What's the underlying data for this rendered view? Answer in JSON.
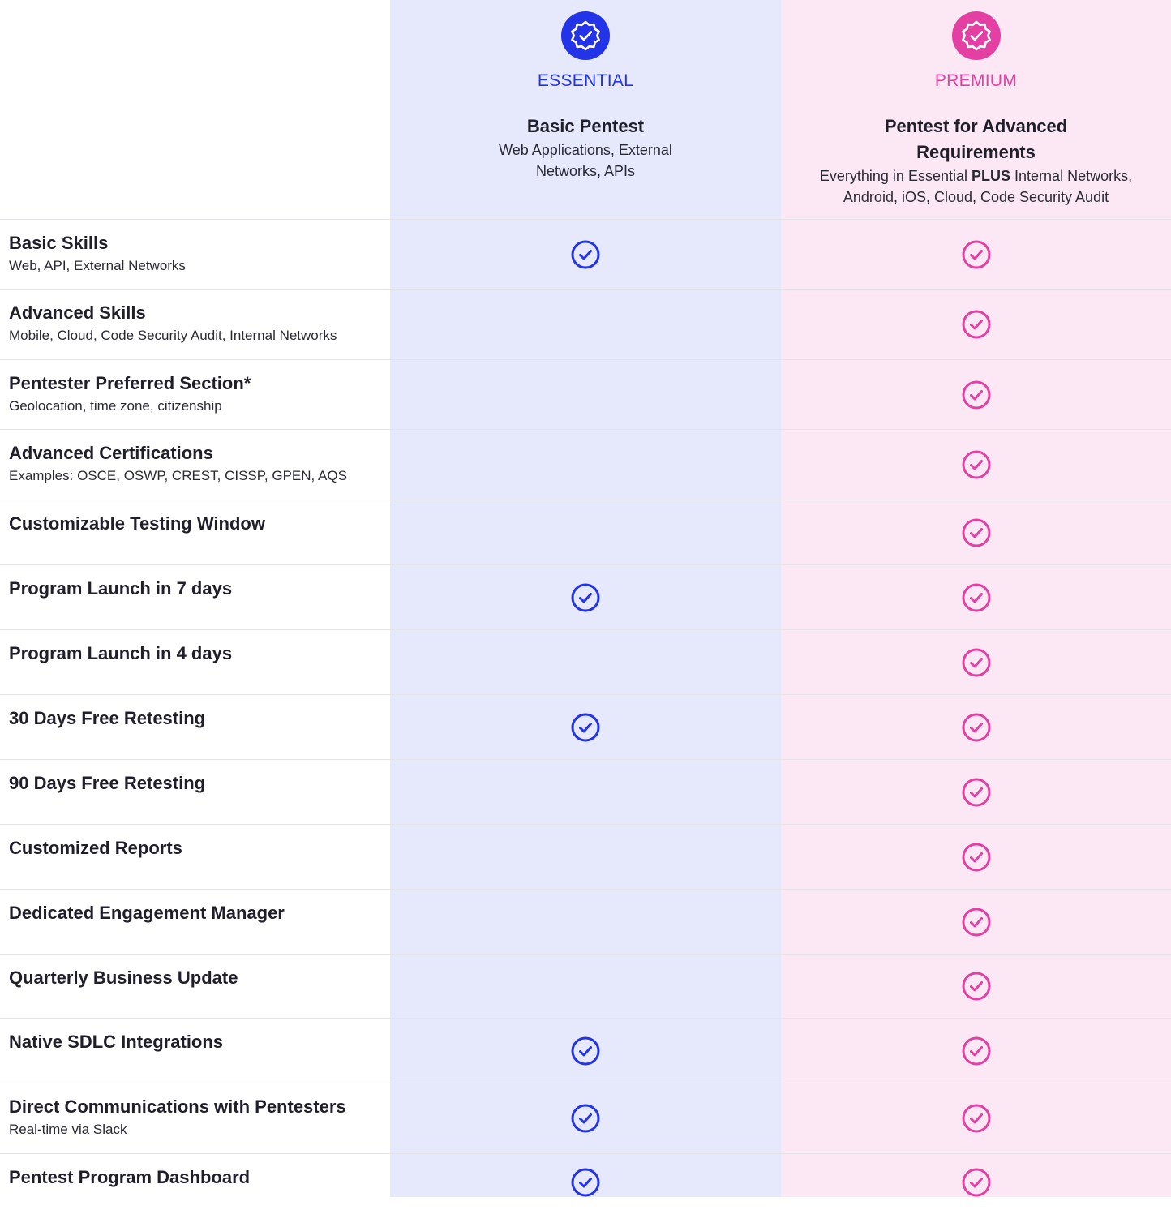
{
  "colors": {
    "essential_accent": "#2333e8",
    "premium_accent": "#e43fa2",
    "essential_bg": "#e6e8fc",
    "premium_bg": "#fce8f4"
  },
  "plans": {
    "essential": {
      "badge_icon": "verified-badge-icon",
      "tier": "ESSENTIAL",
      "title": "Basic Pentest",
      "description": "Web Applications, External Networks, APIs"
    },
    "premium": {
      "badge_icon": "verified-badge-icon",
      "tier": "PREMIUM",
      "title": "Pentest for Advanced Requirements",
      "description_prefix": "Everything in Essential",
      "description_bold": "PLUS",
      "description_suffix": "Internal Networks, Android, iOS, Cloud, Code Security Audit"
    }
  },
  "check_icon": "check-circle-icon",
  "features": [
    {
      "title": "Basic Skills",
      "subtitle": "Web, API, External Networks",
      "essential": true,
      "premium": true
    },
    {
      "title": "Advanced Skills",
      "subtitle": "Mobile, Cloud, Code Security Audit, Internal Networks",
      "essential": false,
      "premium": true
    },
    {
      "title": "Pentester Preferred Section*",
      "subtitle": "Geolocation, time zone, citizenship",
      "essential": false,
      "premium": true
    },
    {
      "title": "Advanced Certifications",
      "subtitle": "Examples: OSCE, OSWP, CREST, CISSP, GPEN, AQS",
      "essential": false,
      "premium": true
    },
    {
      "title": "Customizable Testing Window",
      "subtitle": "",
      "essential": false,
      "premium": true
    },
    {
      "title": "Program Launch in 7 days",
      "subtitle": "",
      "essential": true,
      "premium": true
    },
    {
      "title": "Program Launch in 4 days",
      "subtitle": "",
      "essential": false,
      "premium": true
    },
    {
      "title": "30 Days Free Retesting",
      "subtitle": "",
      "essential": true,
      "premium": true
    },
    {
      "title": "90 Days Free Retesting",
      "subtitle": "",
      "essential": false,
      "premium": true
    },
    {
      "title": "Customized Reports",
      "subtitle": "",
      "essential": false,
      "premium": true
    },
    {
      "title": "Dedicated Engagement Manager",
      "subtitle": "",
      "essential": false,
      "premium": true
    },
    {
      "title": "Quarterly Business Update",
      "subtitle": "",
      "essential": false,
      "premium": true
    },
    {
      "title": "Native SDLC Integrations",
      "subtitle": "",
      "essential": true,
      "premium": true
    },
    {
      "title": "Direct Communications with Pentesters",
      "subtitle": "Real-time via Slack",
      "essential": true,
      "premium": true
    },
    {
      "title": "Pentest Program Dashboard",
      "subtitle": "",
      "essential": true,
      "premium": true
    }
  ]
}
